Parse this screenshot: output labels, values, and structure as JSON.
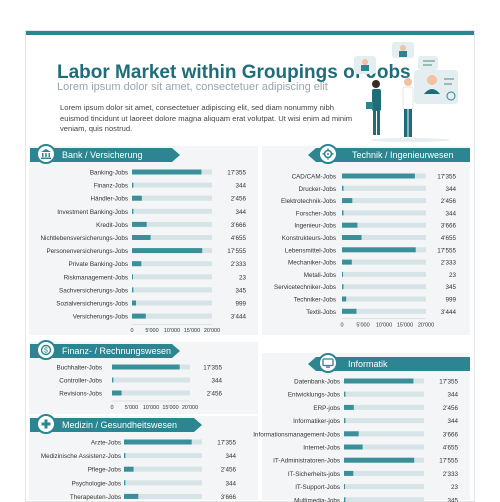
{
  "header": {
    "title": "Labor Market within Groupings of Jobs",
    "subtitle": "Lorem ipsum dolor sit amet, consectetuer adipiscing elit",
    "intro": "Lorem ipsum dolor sit amet, consectetuer adipiscing elit, sed diam nonummy nibh euismod tincidunt ut laoreet dolore magna aliquam erat volutpat. Ut wisi enim ad minim veniam, quis nostrud."
  },
  "colors": {
    "accent": "#2c8590",
    "accent_dark": "#1f6d79",
    "bar": "#3a8f99",
    "track": "#d6e4e7",
    "panel": "#f3f5f6"
  },
  "sections": {
    "bank": "Bank / Versicherung",
    "technik": "Technik / Ingenieurwesen",
    "finanz": "Finanz- / Rechnungswesen",
    "informatik": "Informatik",
    "medizin": "Medizin / Gesundheitswesen"
  },
  "chart_data": [
    {
      "id": "bank",
      "type": "bar",
      "orientation": "horizontal",
      "title": "Bank / Versicherung",
      "categories": [
        "Banking-Jobs",
        "Finanz-Jobs",
        "Händler-Jobs",
        "Investment Banking-Jobs",
        "Kredit-Jobs",
        "Nichtlebensversicherungs-Jobs",
        "Personenversicherungs-Jobs",
        "Private Banking-Jobs",
        "Riskmanagement-Jobs",
        "Sachversicherungs-Jobs",
        "Sozialversicherungs-Jobs",
        "Versicherungs-Jobs"
      ],
      "values": [
        17355,
        344,
        2456,
        344,
        3666,
        4655,
        17555,
        2333,
        23,
        345,
        999,
        3444
      ],
      "value_labels": [
        "17'355",
        "344",
        "2'456",
        "344",
        "3'666",
        "4'655",
        "17'555",
        "2'333",
        "23",
        "345",
        "999",
        "3'444"
      ],
      "ticks": [
        "0",
        "5'000",
        "10'000",
        "15'000",
        "20'000"
      ],
      "xlim": [
        0,
        20000
      ],
      "grid": false
    },
    {
      "id": "technik",
      "type": "bar",
      "orientation": "horizontal",
      "title": "Technik / Ingenieurwesen",
      "categories": [
        "CAD/CAM-Jobs",
        "Drucker-Jobs",
        "Elektrotechnik-Jobs",
        "Forscher-Jobs",
        "Ingenieur-Jobs",
        "Konstrukteurs-Jobs",
        "Lebensmittel-Jobs",
        "Mechaniker-Jobs",
        "Metall-Jobs",
        "Servicetechniker-Jobs",
        "Techniker-Jobs",
        "Textil-Jobs"
      ],
      "values": [
        17355,
        344,
        2456,
        344,
        3666,
        4655,
        17555,
        2333,
        23,
        345,
        999,
        3444
      ],
      "value_labels": [
        "17'355",
        "344",
        "2'456",
        "344",
        "3'666",
        "4'655",
        "17'555",
        "2'333",
        "23",
        "345",
        "999",
        "3'444"
      ],
      "ticks": [
        "0",
        "5'000",
        "10'000",
        "15'000",
        "20'000"
      ],
      "xlim": [
        0,
        20000
      ],
      "grid": false
    },
    {
      "id": "finanz",
      "type": "bar",
      "orientation": "horizontal",
      "title": "Finanz- / Rechnungswesen",
      "categories": [
        "Buchhalter-Jobs",
        "Controller-Jobs",
        "Revisions-Jobs"
      ],
      "values": [
        17355,
        344,
        2456
      ],
      "value_labels": [
        "17'355",
        "344",
        "2'456"
      ],
      "ticks": [
        "0",
        "5'000",
        "10'000",
        "15'000",
        "20'000"
      ],
      "xlim": [
        0,
        20000
      ],
      "grid": false
    },
    {
      "id": "informatik",
      "type": "bar",
      "orientation": "horizontal",
      "title": "Informatik",
      "categories": [
        "Datenbank-Jobs",
        "Entwicklungs-Jobs",
        "ERP-jobs",
        "Informatiker-jobs",
        "Informationsmanagement-Jobs",
        "Internet-Jobs",
        "IT-Administratoren-Jobs",
        "IT-Sicherheits-jobs",
        "IT-Support-Jobs",
        "Multimedia-Jobs"
      ],
      "values": [
        17355,
        344,
        2456,
        344,
        3666,
        4655,
        17555,
        2333,
        23,
        345
      ],
      "value_labels": [
        "17'355",
        "344",
        "2'456",
        "344",
        "3'666",
        "4'655",
        "17'555",
        "2'333",
        "23",
        "345"
      ],
      "xlim": [
        0,
        20000
      ],
      "grid": false
    },
    {
      "id": "medizin",
      "type": "bar",
      "orientation": "horizontal",
      "title": "Medizin / Gesundheitswesen",
      "categories": [
        "Arzte-Jobs",
        "Medizinische Assistenz-Jobs",
        "Pflege-Jobs",
        "Psychologie-Jobs",
        "Therapeuten-Jobs"
      ],
      "values": [
        17355,
        344,
        2456,
        344,
        3666
      ],
      "value_labels": [
        "17'355",
        "344",
        "2'456",
        "344",
        "3'666"
      ],
      "xlim": [
        0,
        20000
      ],
      "grid": false
    }
  ]
}
